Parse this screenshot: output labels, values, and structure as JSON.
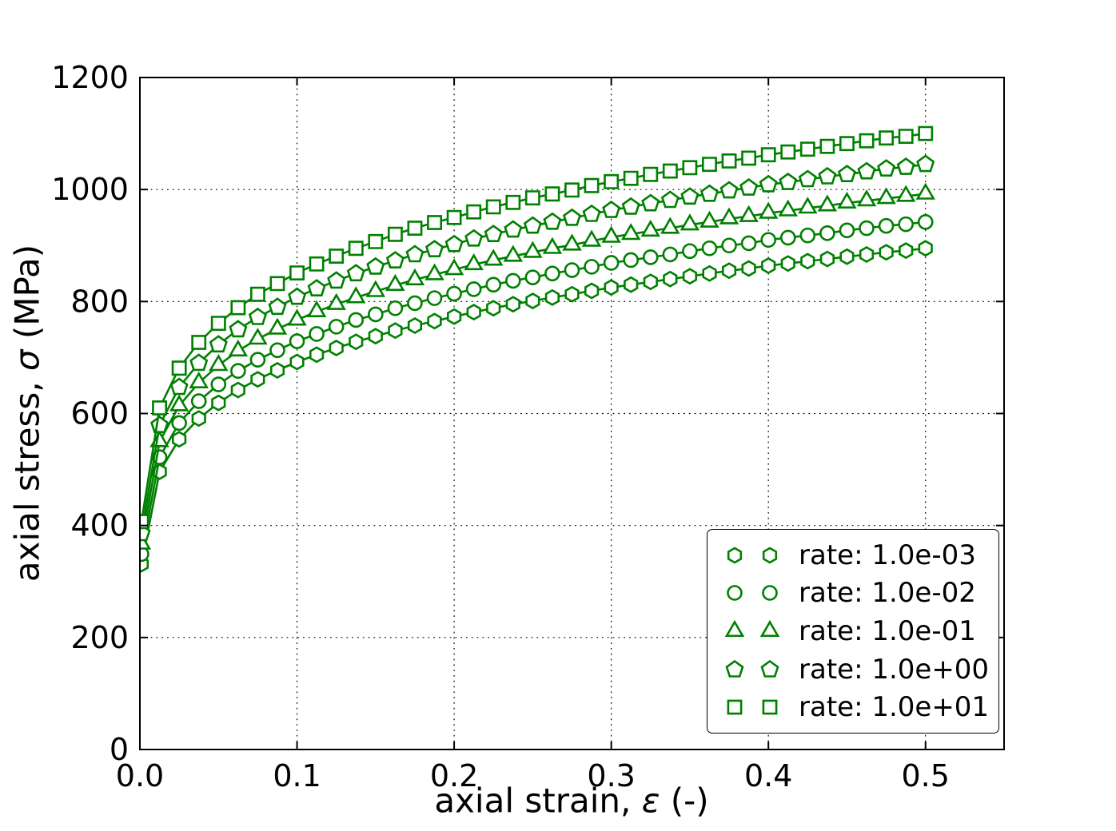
{
  "chart_data": {
    "type": "line",
    "title": "",
    "xlabel": {
      "pre": "axial strain, ",
      "sym": "ε",
      "post": " (-)"
    },
    "ylabel": {
      "pre": "axial stress, ",
      "sym": "σ",
      "post": " (MPa)"
    },
    "xlim": [
      0,
      0.55
    ],
    "ylim": [
      0,
      1200
    ],
    "xticks": [
      0,
      0.1,
      0.2,
      0.3,
      0.4,
      0.5
    ],
    "xtick_labels": [
      "0.0",
      "0.1",
      "0.2",
      "0.3",
      "0.4",
      "0.5"
    ],
    "yticks": [
      0,
      200,
      400,
      600,
      800,
      1000,
      1200
    ],
    "ytick_labels": [
      "0",
      "200",
      "400",
      "600",
      "800",
      "1000",
      "1200"
    ],
    "grid": true,
    "grid_style": "dotted",
    "line_color": "#008000",
    "marker_face": "#ffffff",
    "legend_position": "lower right",
    "x": [
      0.001,
      0.0125,
      0.025,
      0.0375,
      0.05,
      0.0625,
      0.075,
      0.0875,
      0.1,
      0.1125,
      0.125,
      0.1375,
      0.15,
      0.1625,
      0.175,
      0.1875,
      0.2,
      0.2125,
      0.225,
      0.2375,
      0.25,
      0.2625,
      0.275,
      0.2875,
      0.3,
      0.3125,
      0.325,
      0.3375,
      0.35,
      0.3625,
      0.375,
      0.3875,
      0.4,
      0.4125,
      0.425,
      0.4375,
      0.45,
      0.4625,
      0.475,
      0.4875,
      0.5
    ],
    "series": [
      {
        "label": "rate: 1.0e-03",
        "marker": "hexagon",
        "values": [
          331,
          496,
          554,
          591,
          619,
          642,
          661,
          677,
          692,
          705,
          717,
          728,
          738,
          748,
          757,
          765,
          773,
          781,
          788,
          795,
          801,
          807,
          813,
          819,
          825,
          830,
          835,
          840,
          845,
          850,
          855,
          859,
          864,
          868,
          872,
          876,
          880,
          884,
          888,
          891,
          895
        ]
      },
      {
        "label": "rate: 1.0e-02",
        "marker": "circle",
        "values": [
          349,
          522,
          583,
          622,
          652,
          676,
          696,
          713,
          729,
          742,
          755,
          767,
          777,
          788,
          797,
          806,
          814,
          822,
          830,
          837,
          843,
          850,
          856,
          862,
          869,
          874,
          879,
          884,
          890,
          895,
          900,
          904,
          910,
          914,
          918,
          922,
          927,
          931,
          935,
          938,
          942
        ]
      },
      {
        "label": "rate: 1.0e-01",
        "marker": "triangle",
        "values": [
          367,
          550,
          614,
          655,
          686,
          712,
          733,
          751,
          767,
          782,
          795,
          807,
          818,
          829,
          839,
          848,
          857,
          866,
          874,
          881,
          888,
          895,
          901,
          908,
          915,
          920,
          926,
          931,
          937,
          942,
          948,
          952,
          958,
          962,
          967,
          971,
          976,
          980,
          984,
          988,
          992
        ]
      },
      {
        "label": "rate: 1.0e+00",
        "marker": "pentagon",
        "values": [
          386,
          579,
          647,
          690,
          723,
          750,
          772,
          790,
          808,
          823,
          837,
          850,
          862,
          873,
          884,
          893,
          902,
          912,
          920,
          928,
          935,
          942,
          949,
          956,
          963,
          969,
          975,
          981,
          987,
          992,
          998,
          1003,
          1009,
          1013,
          1018,
          1023,
          1027,
          1032,
          1037,
          1040,
          1045
        ]
      },
      {
        "label": "rate: 1.0e+01",
        "marker": "square",
        "values": [
          407,
          610,
          681,
          727,
          761,
          789,
          813,
          832,
          851,
          867,
          881,
          895,
          907,
          920,
          931,
          941,
          950,
          960,
          969,
          977,
          985,
          992,
          999,
          1007,
          1014,
          1020,
          1027,
          1033,
          1039,
          1045,
          1051,
          1056,
          1062,
          1067,
          1072,
          1077,
          1082,
          1087,
          1092,
          1095,
          1100
        ]
      }
    ]
  }
}
